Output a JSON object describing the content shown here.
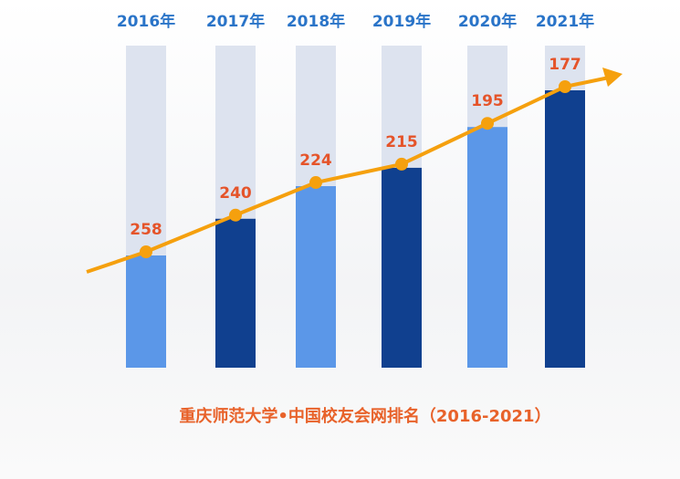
{
  "chart_data": {
    "type": "bar",
    "title": "重庆师范大学•中国校友会网排名（2016-2021）",
    "categories": [
      "2016年",
      "2017年",
      "2018年",
      "2019年",
      "2020年",
      "2021年"
    ],
    "values": [
      258,
      240,
      224,
      215,
      195,
      177
    ],
    "colors": [
      "#5b97e8",
      "#10408f",
      "#5b97e8",
      "#10408f",
      "#5b97e8",
      "#10408f"
    ],
    "line_color": "#f5a00e"
  }
}
